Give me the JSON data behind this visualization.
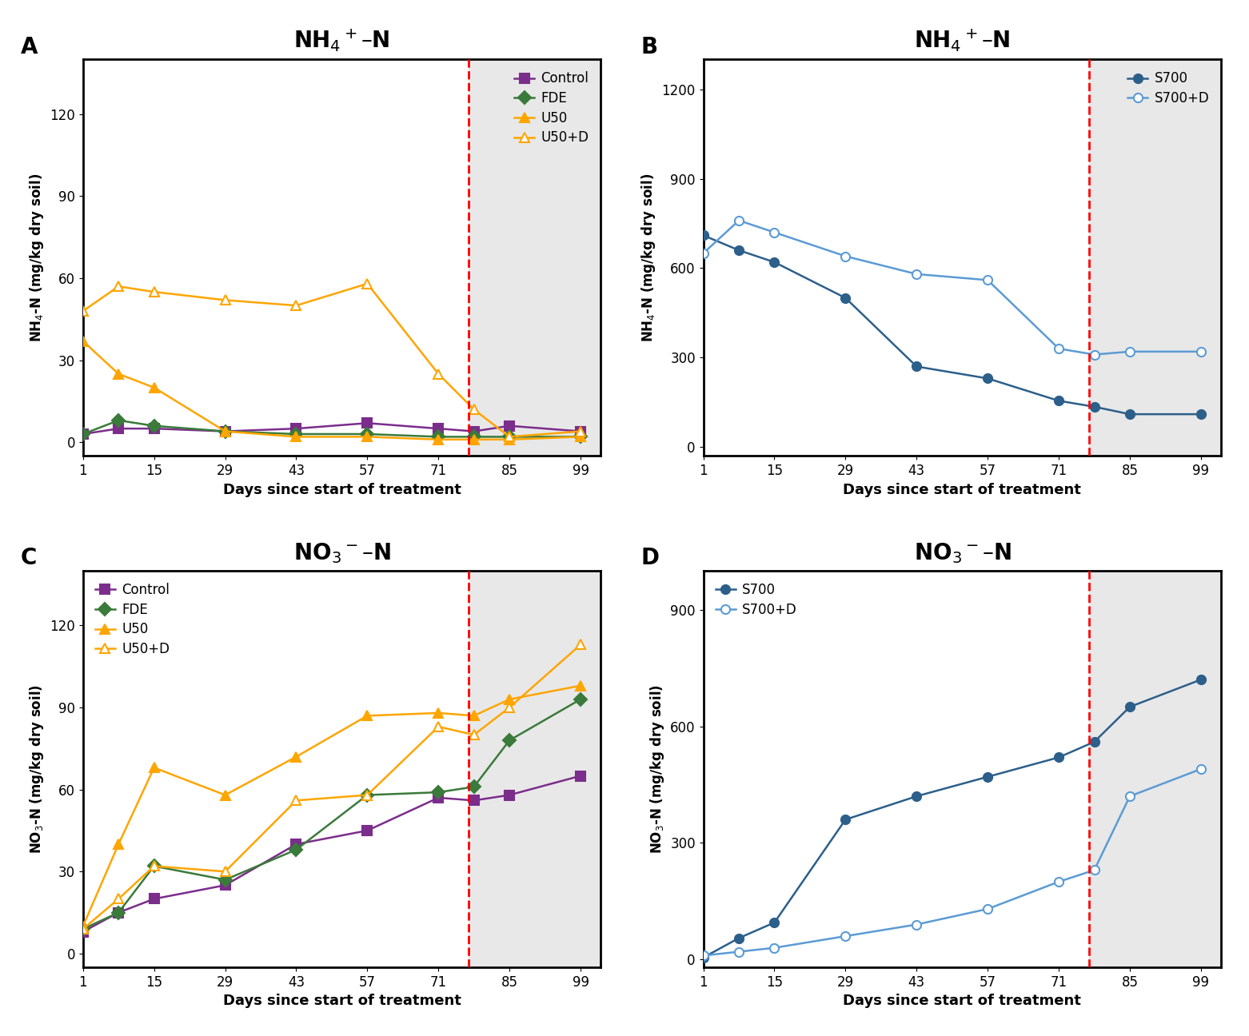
{
  "panel_A": {
    "title": "NH$_4$$^+$–N",
    "ylabel": "NH$_4$-N (mg/kg dry soil)",
    "xlabel": "Days since start of treatment",
    "ylim": [
      -5,
      140
    ],
    "yticks": [
      0,
      30,
      60,
      90,
      120
    ],
    "legend_loc": "upper right",
    "series": {
      "Control": {
        "x": [
          1,
          8,
          15,
          29,
          43,
          57,
          71,
          78,
          85,
          99
        ],
        "y": [
          3,
          5,
          5,
          4,
          5,
          7,
          5,
          4,
          6,
          4
        ],
        "color": "#7B2D8B",
        "marker": "s",
        "fillstyle": "full"
      },
      "FDE": {
        "x": [
          1,
          8,
          15,
          29,
          43,
          57,
          71,
          78,
          85,
          99
        ],
        "y": [
          3,
          8,
          6,
          4,
          3,
          3,
          2,
          2,
          2,
          2
        ],
        "color": "#3a7a3a",
        "marker": "D",
        "fillstyle": "full"
      },
      "U50": {
        "x": [
          1,
          8,
          15,
          29,
          43,
          57,
          71,
          78,
          85,
          99
        ],
        "y": [
          37,
          25,
          20,
          4,
          2,
          2,
          1,
          1,
          1,
          2
        ],
        "color": "#FFA500",
        "marker": "^",
        "fillstyle": "full"
      },
      "U50+D": {
        "x": [
          1,
          8,
          15,
          29,
          43,
          57,
          71,
          78,
          85,
          99
        ],
        "y": [
          48,
          57,
          55,
          52,
          50,
          58,
          25,
          12,
          2,
          4
        ],
        "color": "#FFA500",
        "marker": "^",
        "fillstyle": "none"
      }
    }
  },
  "panel_B": {
    "title": "NH$_4$$^+$–N",
    "ylabel": "NH$_4$-N (mg/kg dry soil)",
    "xlabel": "Days since start of treatment",
    "ylim": [
      -30,
      1300
    ],
    "yticks": [
      0,
      300,
      600,
      900,
      1200
    ],
    "legend_loc": "upper right",
    "series": {
      "S700": {
        "x": [
          1,
          8,
          15,
          29,
          43,
          57,
          71,
          78,
          85,
          99
        ],
        "y": [
          710,
          660,
          620,
          500,
          270,
          230,
          155,
          135,
          110,
          110
        ],
        "color": "#2c5f8a",
        "marker": "o",
        "fillstyle": "full"
      },
      "S700+D": {
        "x": [
          1,
          8,
          15,
          29,
          43,
          57,
          71,
          78,
          85,
          99
        ],
        "y": [
          650,
          760,
          720,
          640,
          580,
          560,
          330,
          310,
          320,
          320
        ],
        "color": "#5b9bd5",
        "marker": "o",
        "fillstyle": "none"
      }
    }
  },
  "panel_C": {
    "title": "NO$_3$$^-$–N",
    "ylabel": "NO$_3$-N (mg/kg dry soil)",
    "xlabel": "Days since start of treatment",
    "ylim": [
      -5,
      140
    ],
    "yticks": [
      0,
      30,
      60,
      90,
      120
    ],
    "legend_loc": "upper left",
    "series": {
      "Control": {
        "x": [
          1,
          8,
          15,
          29,
          43,
          57,
          71,
          78,
          85,
          99
        ],
        "y": [
          8,
          15,
          20,
          25,
          40,
          45,
          57,
          56,
          58,
          65
        ],
        "color": "#7B2D8B",
        "marker": "s",
        "fillstyle": "full"
      },
      "FDE": {
        "x": [
          1,
          8,
          15,
          29,
          43,
          57,
          71,
          78,
          85,
          99
        ],
        "y": [
          9,
          15,
          32,
          27,
          38,
          58,
          59,
          61,
          78,
          93
        ],
        "color": "#3a7a3a",
        "marker": "D",
        "fillstyle": "full"
      },
      "U50": {
        "x": [
          1,
          8,
          15,
          29,
          43,
          57,
          71,
          78,
          85,
          99
        ],
        "y": [
          10,
          40,
          68,
          58,
          72,
          87,
          88,
          87,
          93,
          98
        ],
        "color": "#FFA500",
        "marker": "^",
        "fillstyle": "full"
      },
      "U50+D": {
        "x": [
          1,
          8,
          15,
          29,
          43,
          57,
          71,
          78,
          85,
          99
        ],
        "y": [
          9,
          20,
          32,
          30,
          56,
          58,
          83,
          80,
          90,
          113
        ],
        "color": "#FFA500",
        "marker": "^",
        "fillstyle": "none"
      }
    }
  },
  "panel_D": {
    "title": "NO$_3$$^-$–N",
    "ylabel": "NO$_3$-N (mg/kg dry soil)",
    "xlabel": "Days since start of treatment",
    "ylim": [
      -20,
      1000
    ],
    "yticks": [
      0,
      300,
      600,
      900
    ],
    "legend_loc": "upper left",
    "series": {
      "S700": {
        "x": [
          1,
          8,
          15,
          29,
          43,
          57,
          71,
          78,
          85,
          99
        ],
        "y": [
          5,
          55,
          95,
          360,
          420,
          470,
          520,
          560,
          650,
          720
        ],
        "color": "#2c5f8a",
        "marker": "o",
        "fillstyle": "full"
      },
      "S700+D": {
        "x": [
          1,
          8,
          15,
          29,
          43,
          57,
          71,
          78,
          85,
          99
        ],
        "y": [
          10,
          20,
          30,
          60,
          90,
          130,
          200,
          230,
          420,
          490
        ],
        "color": "#5b9bd5",
        "marker": "o",
        "fillstyle": "none"
      }
    }
  },
  "gray_bg_color": "#e8e8e8",
  "xticks": [
    1,
    15,
    29,
    43,
    57,
    71,
    85,
    99
  ],
  "dashed_x": 77,
  "xlim": [
    1,
    103
  ]
}
